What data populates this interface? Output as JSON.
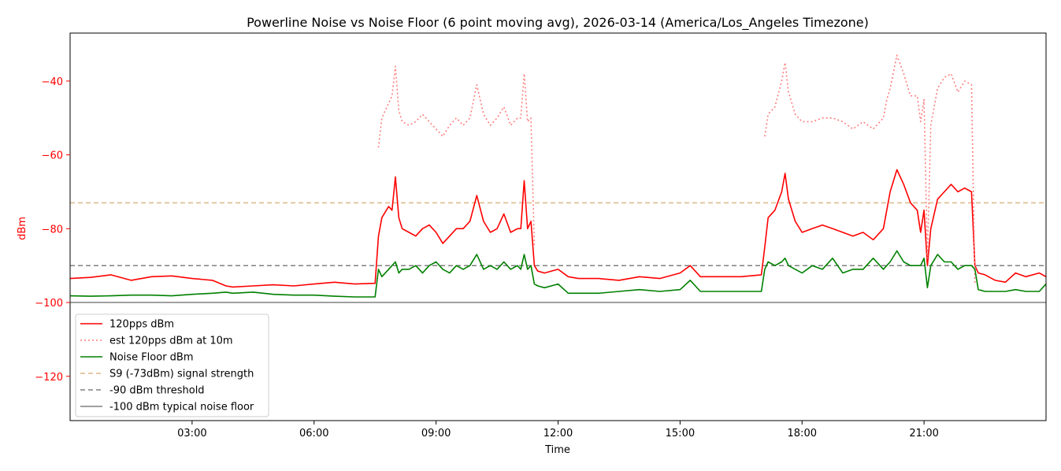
{
  "chart_data": {
    "type": "line",
    "title": "Powerline Noise vs Noise Floor (6 point moving avg), 2026-03-14 (America/Los_Angeles Timezone)",
    "xlabel": "Time",
    "ylabel": "dBm",
    "xlim": [
      "00:00",
      "24:00"
    ],
    "ylim": [
      -132,
      -27
    ],
    "xticks": [
      "03:00",
      "06:00",
      "09:00",
      "12:00",
      "15:00",
      "18:00",
      "21:00"
    ],
    "yticks": [
      -120,
      -100,
      -80,
      -60,
      -40
    ],
    "grid": false,
    "legend_position": "lower-left",
    "colors": {
      "signal": "#ff0000",
      "estimate": "#ff7f7f",
      "noise_floor": "#008000",
      "s9": "#deb887",
      "threshold": "#808080",
      "typical_floor": "#808080",
      "ylabel": "#ff0000"
    },
    "x": [
      "00:00",
      "00:30",
      "01:00",
      "01:30",
      "02:00",
      "02:30",
      "03:00",
      "03:30",
      "03:50",
      "04:00",
      "04:30",
      "05:00",
      "05:30",
      "06:00",
      "06:30",
      "07:00",
      "07:30",
      "07:35",
      "07:40",
      "07:50",
      "07:55",
      "08:00",
      "08:05",
      "08:10",
      "08:20",
      "08:30",
      "08:40",
      "08:50",
      "09:00",
      "09:10",
      "09:20",
      "09:30",
      "09:40",
      "09:50",
      "10:00",
      "10:10",
      "10:20",
      "10:30",
      "10:40",
      "10:50",
      "11:00",
      "11:05",
      "11:10",
      "11:15",
      "11:20",
      "11:25",
      "11:30",
      "11:40",
      "12:00",
      "12:15",
      "12:30",
      "13:00",
      "13:30",
      "14:00",
      "14:30",
      "15:00",
      "15:15",
      "15:30",
      "16:00",
      "16:30",
      "17:00",
      "17:05",
      "17:10",
      "17:20",
      "17:30",
      "17:35",
      "17:40",
      "17:50",
      "18:00",
      "18:15",
      "18:30",
      "18:45",
      "19:00",
      "19:15",
      "19:30",
      "19:45",
      "20:00",
      "20:05",
      "20:10",
      "20:20",
      "20:30",
      "20:40",
      "20:50",
      "20:55",
      "21:00",
      "21:05",
      "21:10",
      "21:20",
      "21:30",
      "21:40",
      "21:50",
      "22:00",
      "22:10",
      "22:15",
      "22:20",
      "22:30",
      "22:45",
      "23:00",
      "23:15",
      "23:30",
      "23:50",
      "24:00"
    ],
    "series": [
      {
        "name": "120pps dBm",
        "style": "solid",
        "values": [
          -93.5,
          -93.2,
          -92.5,
          -94,
          -93,
          -92.8,
          -93.5,
          -94,
          -95.5,
          -95.8,
          -95.5,
          -95.2,
          -95.5,
          -95,
          -94.5,
          -95,
          -94.8,
          -82,
          -77,
          -74,
          -75,
          -66,
          -77,
          -80,
          -81,
          -82,
          -80,
          -79,
          -81,
          -84,
          -82,
          -80,
          -80,
          -78,
          -71,
          -78,
          -81,
          -80,
          -76,
          -81,
          -80,
          -80,
          -67,
          -80,
          -78,
          -90,
          -91.5,
          -92,
          -91,
          -93,
          -93.5,
          -93.5,
          -94,
          -93,
          -93.5,
          -92,
          -90,
          -93,
          -93,
          -93,
          -92.5,
          -85,
          -77,
          -75,
          -70,
          -65,
          -72,
          -78,
          -81,
          -80,
          -79,
          -80,
          -81,
          -82,
          -81,
          -83,
          -80,
          -75,
          -70,
          -64,
          -68,
          -73,
          -75,
          -81,
          -75,
          -90,
          -80,
          -72,
          -70,
          -68,
          -70,
          -69,
          -70,
          -90,
          -92,
          -92.5,
          -94,
          -94.5,
          -92,
          -93,
          -92,
          -93
        ]
      },
      {
        "name": "est 120pps dBm at 10m",
        "style": "dotted",
        "values": [
          null,
          null,
          null,
          null,
          null,
          null,
          null,
          null,
          null,
          null,
          null,
          null,
          null,
          null,
          null,
          null,
          null,
          -58,
          -50,
          -46,
          -44,
          -36,
          -48,
          -51,
          -52,
          -51,
          -49,
          -51,
          -53,
          -55,
          -52,
          -50,
          -52,
          -50,
          -41,
          -49,
          -52,
          -50,
          -47,
          -52,
          -50,
          -50,
          -38,
          -51,
          -50,
          -85,
          null,
          null,
          null,
          null,
          null,
          null,
          null,
          null,
          null,
          null,
          null,
          null,
          null,
          null,
          null,
          -55,
          -49,
          -47,
          -40,
          -35,
          -43,
          -49,
          -51,
          -51,
          -50,
          -50,
          -51,
          -53,
          -51,
          -53,
          -50,
          -45,
          -42,
          -33,
          -38,
          -44,
          -44,
          -51,
          -45,
          -88,
          -52,
          -42,
          -39,
          -38,
          -43,
          -40,
          -41,
          -95,
          null,
          null,
          null,
          null,
          null,
          null,
          null,
          null
        ]
      },
      {
        "name": "Noise Floor dBm",
        "style": "solid",
        "values": [
          -98.2,
          -98.3,
          -98.2,
          -98,
          -98,
          -98.2,
          -97.8,
          -97.5,
          -97.2,
          -97.5,
          -97.2,
          -97.8,
          -98,
          -98,
          -98.3,
          -98.5,
          -98.5,
          -91,
          -93,
          -91,
          -90,
          -89,
          -92,
          -91,
          -91,
          -90,
          -92,
          -90,
          -89,
          -91,
          -92,
          -90,
          -91,
          -90,
          -87,
          -91,
          -90,
          -91,
          -89,
          -91,
          -90,
          -91,
          -87,
          -91,
          -90,
          -95,
          -95.5,
          -96,
          -95,
          -97.5,
          -97.5,
          -97.5,
          -97,
          -96.5,
          -97,
          -96.5,
          -94,
          -97,
          -97,
          -97,
          -97,
          -91,
          -89,
          -90,
          -89,
          -88,
          -90,
          -91,
          -92,
          -90,
          -91,
          -88,
          -92,
          -91,
          -91,
          -88,
          -91,
          -90,
          -89,
          -86,
          -89,
          -90,
          -90,
          -90,
          -88,
          -96,
          -90,
          -87,
          -89,
          -89,
          -91,
          -90,
          -90,
          -91,
          -96.5,
          -97,
          -97,
          -97,
          -96.5,
          -97,
          -97,
          -95
        ]
      }
    ],
    "reference_lines": [
      {
        "name": "S9 (-73dBm) signal strength",
        "value": -73,
        "style": "dashed"
      },
      {
        "name": "-90 dBm threshold",
        "value": -90,
        "style": "dashed"
      },
      {
        "name": "-100 dBm typical noise floor",
        "value": -100,
        "style": "solid"
      }
    ]
  }
}
